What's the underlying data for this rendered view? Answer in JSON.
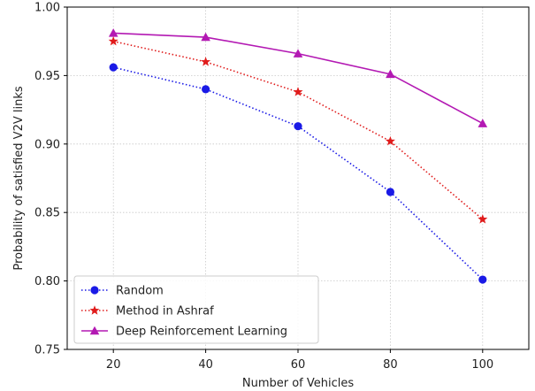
{
  "chart_data": {
    "type": "line",
    "xlabel": "Number of Vehicles",
    "ylabel": "Probability of satisfied V2V links",
    "x": [
      20,
      40,
      60,
      80,
      100
    ],
    "xlim": [
      10,
      110
    ],
    "ylim": [
      0.75,
      1.0
    ],
    "xticks": [
      "20",
      "40",
      "60",
      "80",
      "100"
    ],
    "yticks": [
      "0.75",
      "0.80",
      "0.85",
      "0.90",
      "0.95",
      "1.00"
    ],
    "grid": true,
    "legend_position": "lower-left",
    "series": [
      {
        "name": "Random",
        "values": [
          0.956,
          0.94,
          0.913,
          0.865,
          0.801
        ],
        "color": "#1a1ae6",
        "line_style": "dotted",
        "marker": "circle"
      },
      {
        "name": "Method in Ashraf",
        "values": [
          0.975,
          0.96,
          0.938,
          0.902,
          0.845
        ],
        "color": "#e01b1b",
        "line_style": "dotted",
        "marker": "star"
      },
      {
        "name": "Deep Reinforcement Learning",
        "values": [
          0.981,
          0.978,
          0.966,
          0.951,
          0.915
        ],
        "color": "#b319b3",
        "line_style": "solid",
        "marker": "triangle"
      }
    ]
  }
}
